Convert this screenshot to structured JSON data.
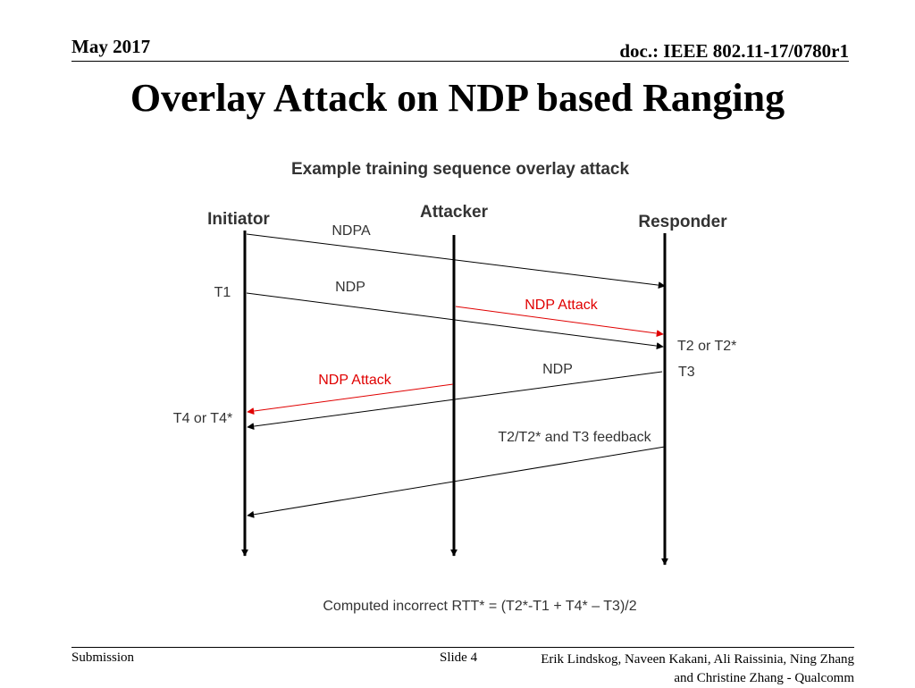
{
  "header": {
    "date": "May 2017",
    "doc": "doc.: IEEE 802.11-17/0780r1"
  },
  "title": "Overlay Attack on NDP based Ranging",
  "diagram": {
    "caption": "Example training sequence overlay attack",
    "participants": {
      "initiator": "Initiator",
      "attacker": "Attacker",
      "responder": "Responder"
    },
    "messages": {
      "ndpa": "NDPA",
      "ndp_1": "NDP",
      "ndp_attack_1": "NDP Attack",
      "ndp_2": "NDP",
      "ndp_attack_2": "NDP Attack",
      "feedback": "T2/T2* and T3 feedback"
    },
    "timestamps": {
      "t1": "T1",
      "t2": "T2 or T2*",
      "t3": "T3",
      "t4": "T4 or T4*"
    },
    "formula": "Computed incorrect RTT* = (T2*-T1 + T4* – T3)/2",
    "colors": {
      "normal": "#000000",
      "attack": "#e00000"
    }
  },
  "footer": {
    "submission": "Submission",
    "slide": "Slide 4",
    "authors": "Erik Lindskog, Naveen Kakani, Ali Raissinia, Ning Zhang and Christine Zhang - Qualcomm"
  }
}
